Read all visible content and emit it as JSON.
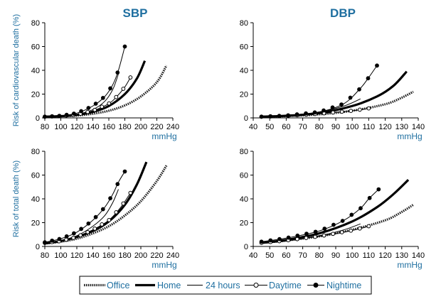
{
  "columns": [
    "SBP",
    "DBP"
  ],
  "colors": {
    "title": "#1f6fa0",
    "axis_label": "#1f6fa0",
    "ink": "#000000",
    "frame": "#000000"
  },
  "legend": {
    "items": [
      {
        "label": "Office",
        "style": "office"
      },
      {
        "label": "Home",
        "style": "home"
      },
      {
        "label": "24 hours",
        "style": "h24"
      },
      {
        "label": "Daytime",
        "style": "day"
      },
      {
        "label": "Nightime",
        "style": "night"
      }
    ]
  },
  "chart_data": [
    {
      "type": "line",
      "title": "SBP",
      "ylabel": "Risk of cardiovascular death (%)",
      "xlabel": "mmHg",
      "xlim": [
        80,
        240
      ],
      "ylim": [
        0,
        80
      ],
      "xticks": [
        80,
        100,
        120,
        140,
        160,
        180,
        200,
        220,
        240
      ],
      "yticks": [
        0,
        20,
        40,
        60,
        80
      ],
      "series": [
        {
          "name": "Office",
          "x": [
            80,
            100,
            120,
            140,
            160,
            180,
            200,
            220,
            232
          ],
          "y": [
            1,
            1.3,
            2,
            3.5,
            6,
            10.5,
            18,
            30,
            44
          ]
        },
        {
          "name": "Home",
          "x": [
            80,
            100,
            120,
            140,
            160,
            180,
            195,
            205
          ],
          "y": [
            1,
            1.5,
            2.5,
            5,
            10,
            20,
            33,
            48
          ]
        },
        {
          "name": "24 hours",
          "x": [
            80,
            100,
            120,
            140,
            155,
            165,
            172
          ],
          "y": [
            1,
            1.6,
            3,
            7,
            14,
            24,
            37
          ]
        },
        {
          "name": "Daytime",
          "x": [
            80,
            100,
            120,
            140,
            160,
            170,
            180,
            187
          ],
          "y": [
            1,
            1.5,
            2.8,
            6,
            12,
            18,
            26,
            34
          ]
        },
        {
          "name": "Nightime",
          "x": [
            80,
            100,
            120,
            140,
            155,
            165,
            172,
            180
          ],
          "y": [
            1,
            1.8,
            4,
            10,
            18,
            28,
            40,
            60
          ]
        }
      ]
    },
    {
      "type": "line",
      "title": "DBP",
      "ylabel": "",
      "xlabel": "mmHg",
      "xlim": [
        40,
        140
      ],
      "ylim": [
        0,
        80
      ],
      "xticks": [
        40,
        50,
        60,
        70,
        80,
        90,
        100,
        110,
        120,
        130,
        140
      ],
      "yticks": [
        0,
        20,
        40,
        60,
        80
      ],
      "series": [
        {
          "name": "Office",
          "x": [
            45,
            60,
            80,
            100,
            120,
            130,
            137
          ],
          "y": [
            1,
            1.5,
            3,
            6,
            11.5,
            17,
            22
          ]
        },
        {
          "name": "Home",
          "x": [
            45,
            60,
            80,
            100,
            115,
            125,
            133
          ],
          "y": [
            1,
            1.8,
            4,
            10,
            18,
            27,
            39
          ]
        },
        {
          "name": "24 hours",
          "x": [
            45,
            60,
            80,
            95,
            105
          ],
          "y": [
            1,
            2,
            5,
            10,
            16
          ]
        },
        {
          "name": "Daytime",
          "x": [
            45,
            60,
            80,
            100,
            110
          ],
          "y": [
            1,
            1.6,
            3.5,
            6,
            8
          ]
        },
        {
          "name": "Nightime",
          "x": [
            45,
            60,
            80,
            95,
            105,
            110,
            115
          ],
          "y": [
            1,
            2,
            5,
            12,
            25,
            34,
            44
          ]
        }
      ]
    },
    {
      "type": "line",
      "title": "",
      "ylabel": "Risk of total death (%)",
      "xlabel": "mmHg",
      "xlim": [
        80,
        240
      ],
      "ylim": [
        0,
        80
      ],
      "xticks": [
        80,
        100,
        120,
        140,
        160,
        180,
        200,
        220,
        240
      ],
      "yticks": [
        0,
        20,
        40,
        60,
        80
      ],
      "series": [
        {
          "name": "Office",
          "x": [
            80,
            100,
            120,
            140,
            160,
            180,
            200,
            220,
            232
          ],
          "y": [
            2.5,
            4,
            6.5,
            11,
            17,
            26,
            38,
            55,
            68
          ]
        },
        {
          "name": "Home",
          "x": [
            80,
            100,
            120,
            140,
            160,
            180,
            195,
            207
          ],
          "y": [
            2.5,
            4.5,
            8,
            13,
            21,
            35,
            52,
            71
          ]
        },
        {
          "name": "24 hours",
          "x": [
            80,
            100,
            120,
            140,
            155,
            165,
            172
          ],
          "y": [
            3,
            5,
            9,
            17,
            26,
            37,
            48
          ]
        },
        {
          "name": "Daytime",
          "x": [
            80,
            100,
            120,
            140,
            160,
            175,
            187
          ],
          "y": [
            3,
            4.5,
            8,
            14,
            22,
            33,
            45
          ]
        },
        {
          "name": "Nightime",
          "x": [
            80,
            100,
            120,
            140,
            155,
            165,
            172,
            180
          ],
          "y": [
            3.5,
            6.5,
            12,
            22,
            33,
            44,
            54,
            63
          ]
        }
      ]
    },
    {
      "type": "line",
      "title": "",
      "ylabel": "",
      "xlabel": "mmHg",
      "xlim": [
        40,
        140
      ],
      "ylim": [
        0,
        80
      ],
      "xticks": [
        40,
        50,
        60,
        70,
        80,
        90,
        100,
        110,
        120,
        130,
        140
      ],
      "yticks": [
        0,
        20,
        40,
        60,
        80
      ],
      "series": [
        {
          "name": "Office",
          "x": [
            45,
            60,
            80,
            100,
            120,
            130,
            137
          ],
          "y": [
            3,
            5,
            8.5,
            14,
            22,
            29,
            35
          ]
        },
        {
          "name": "Home",
          "x": [
            45,
            60,
            80,
            100,
            115,
            125,
            134
          ],
          "y": [
            3,
            5.5,
            11,
            21,
            33,
            44,
            56
          ]
        },
        {
          "name": "24 hours",
          "x": [
            45,
            60,
            80,
            95,
            105
          ],
          "y": [
            2.5,
            4.5,
            9,
            14,
            19
          ]
        },
        {
          "name": "Daytime",
          "x": [
            45,
            60,
            80,
            100,
            110
          ],
          "y": [
            3,
            5,
            8.5,
            13.5,
            17
          ]
        },
        {
          "name": "Nightime",
          "x": [
            45,
            60,
            80,
            95,
            105,
            110,
            116
          ],
          "y": [
            4,
            7,
            13,
            22,
            32,
            40,
            48
          ]
        }
      ]
    }
  ]
}
